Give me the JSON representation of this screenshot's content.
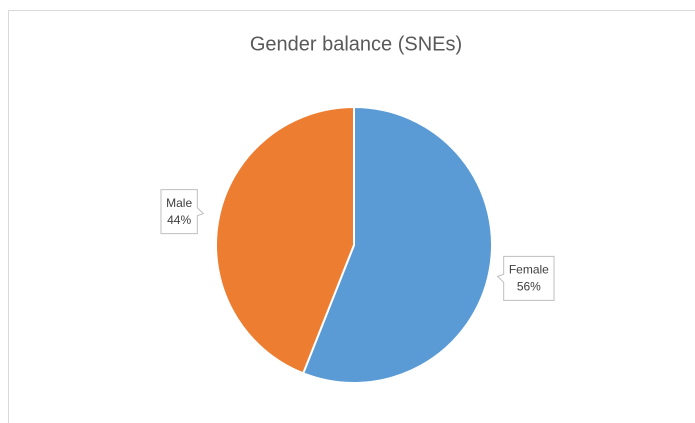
{
  "chart_data": {
    "type": "pie",
    "title": "Gender balance (SNEs)",
    "categories": [
      "Female",
      "Male"
    ],
    "values": [
      56,
      44
    ],
    "value_labels": [
      "56%",
      "44%"
    ],
    "colors": [
      "#5b9bd5",
      "#ed7d31"
    ]
  }
}
